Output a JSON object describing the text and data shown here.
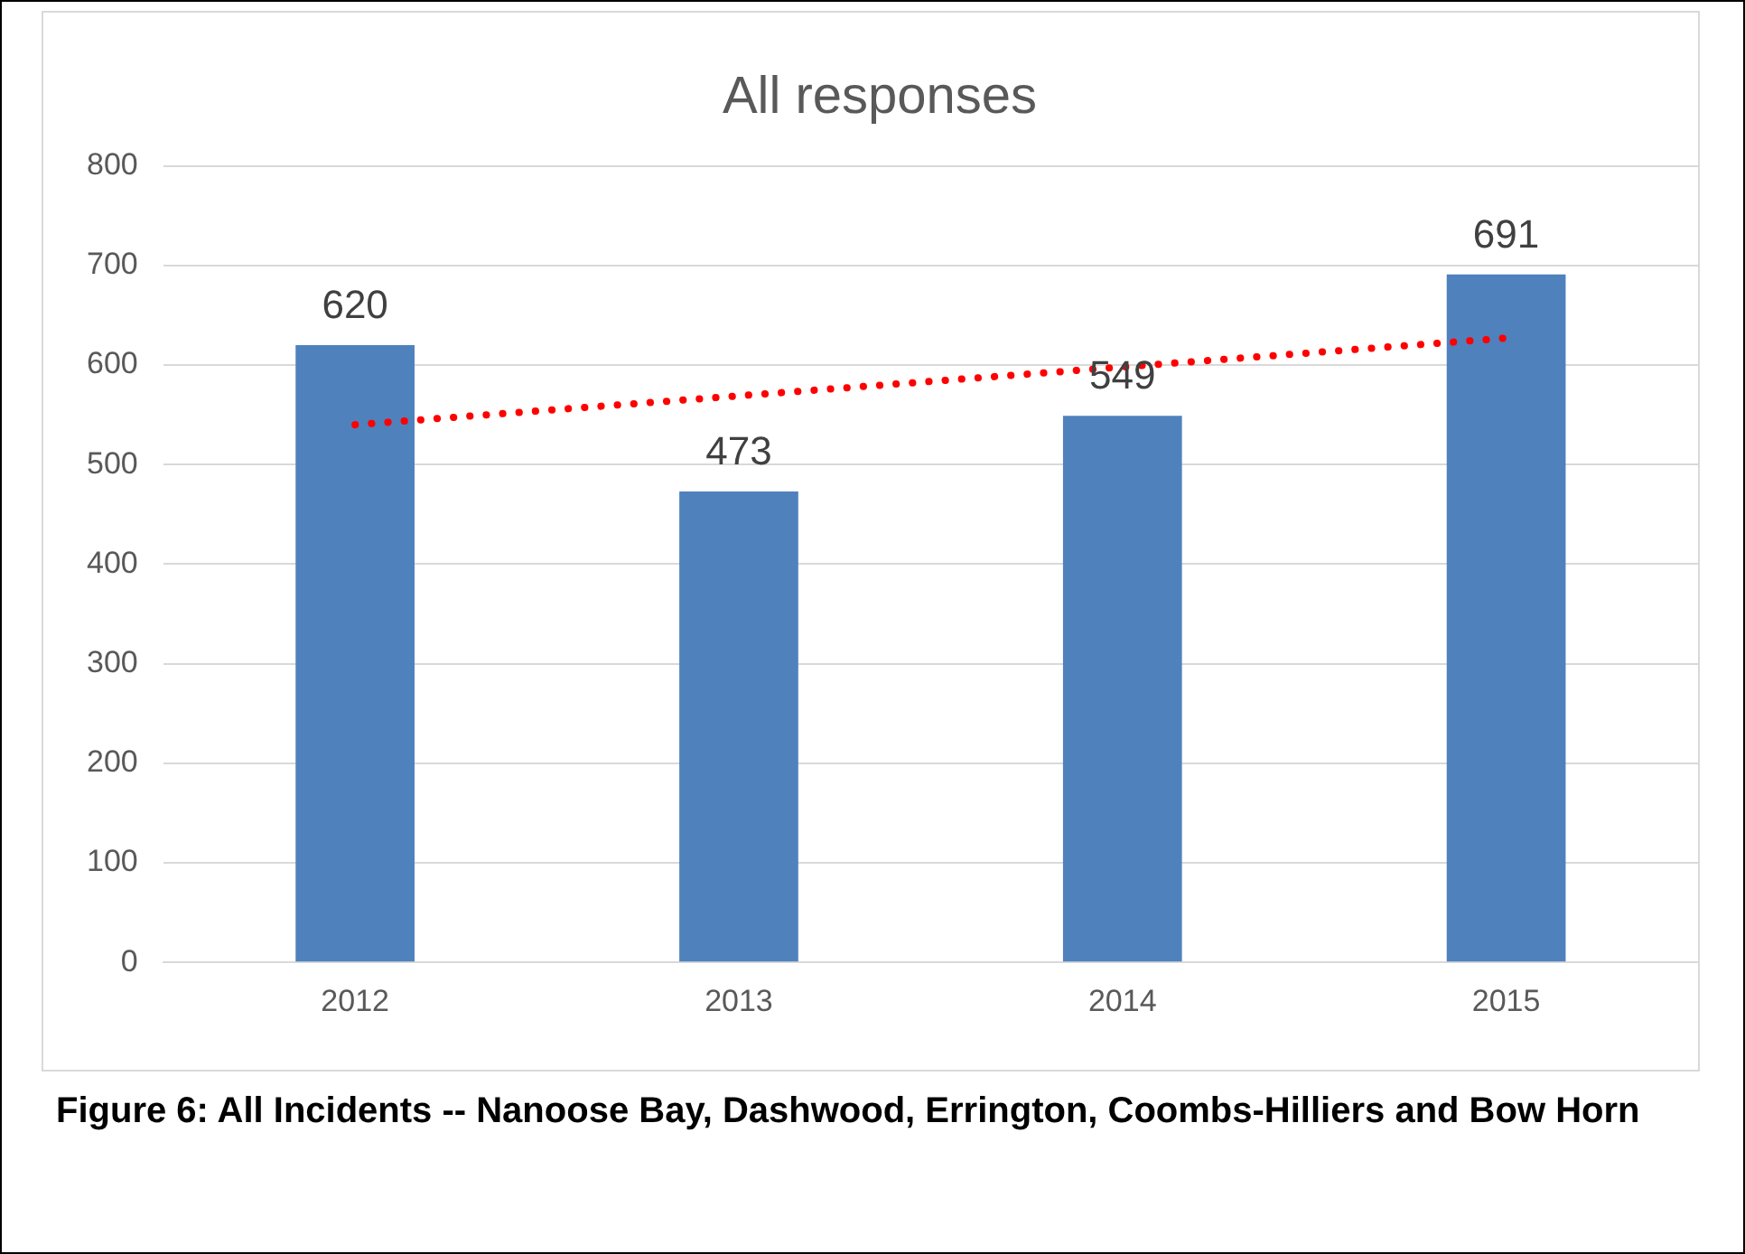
{
  "chart_data": {
    "type": "bar",
    "title": "All responses",
    "categories": [
      "2012",
      "2013",
      "2014",
      "2015"
    ],
    "series": [
      {
        "color": "#4f81bd",
        "values": [
          620,
          473,
          549,
          691
        ],
        "value_labels": [
          "620",
          "473",
          "549",
          "691"
        ]
      },
      {
        "type": "line",
        "color": "#ff0000",
        "values": [
          540,
          569,
          598,
          627
        ],
        "line_style": "dotted",
        "marker": "none"
      }
    ],
    "ylim": [
      0,
      800
    ],
    "yticks": [
      0,
      100,
      200,
      300,
      400,
      500,
      600,
      700,
      800
    ],
    "grid": "y",
    "legend": false,
    "annotations": [
      "Figure 6: All Incidents -- Nanoose Bay, Dashwood, Errington, Coombs-Hilliers and Bow Horn"
    ]
  }
}
